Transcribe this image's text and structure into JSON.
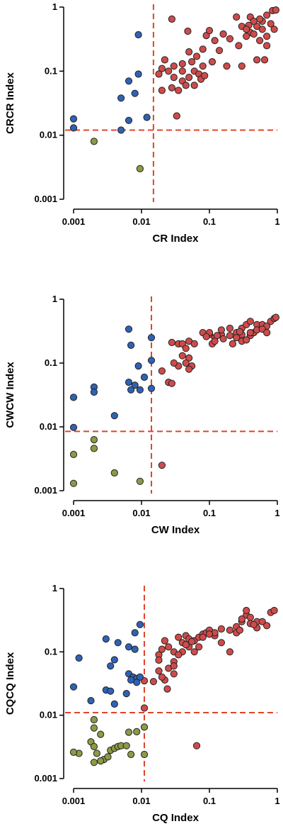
{
  "colors": {
    "red": "#cf4b4b",
    "blue": "#2f62b4",
    "olive": "#8c9a45",
    "reference_line": "#e0442a"
  },
  "chart_data": [
    {
      "type": "scatter",
      "xlabel": "CR Index",
      "ylabel": "CRCR Index",
      "xscale": "log",
      "yscale": "log",
      "xlim": [
        0.001,
        1
      ],
      "ylim": [
        0.001,
        1
      ],
      "xticks": [
        "0.001",
        "0.01",
        "0.1",
        "1"
      ],
      "yticks": [
        "0.001",
        "0.01",
        "0.1",
        "1"
      ],
      "xtick_values": [
        0.001,
        0.01,
        0.1,
        1
      ],
      "ytick_values": [
        0.001,
        0.01,
        0.1,
        1
      ],
      "grid": false,
      "reference_lines": {
        "x": 0.015,
        "y": 0.012
      },
      "series": [
        {
          "color": "#cf4b4b",
          "points": [
            [
              0.028,
              0.65
            ],
            [
              0.048,
              0.42
            ],
            [
              0.16,
              0.38
            ],
            [
              0.4,
              0.7
            ],
            [
              0.5,
              0.5
            ],
            [
              0.7,
              0.75
            ],
            [
              0.85,
              0.88
            ],
            [
              0.95,
              0.9
            ],
            [
              0.9,
              0.45
            ],
            [
              0.6,
              0.6
            ],
            [
              0.55,
              0.3
            ],
            [
              0.7,
              0.25
            ],
            [
              0.4,
              0.4
            ],
            [
              0.3,
              0.5
            ],
            [
              0.25,
              0.7
            ],
            [
              0.2,
              0.32
            ],
            [
              0.12,
              0.3
            ],
            [
              0.09,
              0.36
            ],
            [
              0.1,
              0.43
            ],
            [
              0.08,
              0.22
            ],
            [
              0.14,
              0.21
            ],
            [
              0.18,
              0.12
            ],
            [
              0.3,
              0.12
            ],
            [
              0.35,
              0.35
            ],
            [
              0.45,
              0.38
            ],
            [
              0.5,
              0.15
            ],
            [
              0.65,
              0.15
            ],
            [
              0.7,
              0.35
            ],
            [
              0.08,
              0.12
            ],
            [
              0.06,
              0.1
            ],
            [
              0.05,
              0.08
            ],
            [
              0.04,
              0.07
            ],
            [
              0.03,
              0.08
            ],
            [
              0.025,
              0.1
            ],
            [
              0.02,
              0.11
            ],
            [
              0.018,
              0.09
            ],
            [
              0.022,
              0.15
            ],
            [
              0.03,
              0.12
            ],
            [
              0.04,
              0.1
            ],
            [
              0.05,
              0.2
            ],
            [
              0.065,
              0.17
            ],
            [
              0.055,
              0.14
            ],
            [
              0.07,
              0.09
            ],
            [
              0.045,
              0.06
            ],
            [
              0.035,
              0.05
            ],
            [
              0.028,
              0.055
            ],
            [
              0.02,
              0.05
            ],
            [
              0.06,
              0.06
            ],
            [
              0.075,
              0.075
            ],
            [
              0.085,
              0.085
            ],
            [
              0.033,
              0.02
            ],
            [
              0.38,
              0.52
            ],
            [
              0.55,
              0.65
            ],
            [
              0.8,
              0.55
            ],
            [
              0.45,
              0.6
            ],
            [
              0.35,
              0.45
            ],
            [
              0.6,
              0.45
            ],
            [
              0.27,
              0.25
            ],
            [
              0.11,
              0.14
            ],
            [
              0.04,
              0.13
            ]
          ]
        },
        {
          "color": "#2f62b4",
          "points": [
            [
              0.009,
              0.37
            ],
            [
              0.009,
              0.09
            ],
            [
              0.0065,
              0.07
            ],
            [
              0.008,
              0.045
            ],
            [
              0.005,
              0.038
            ],
            [
              0.0065,
              0.017
            ],
            [
              0.012,
              0.019
            ],
            [
              0.005,
              0.012
            ],
            [
              0.001,
              0.018
            ],
            [
              0.001,
              0.013
            ]
          ]
        },
        {
          "color": "#8c9a45",
          "points": [
            [
              0.002,
              0.008
            ],
            [
              0.0095,
              0.003
            ]
          ]
        }
      ]
    },
    {
      "type": "scatter",
      "xlabel": "CW Index",
      "ylabel": "CWCW Index",
      "xscale": "log",
      "yscale": "log",
      "xlim": [
        0.001,
        1
      ],
      "ylim": [
        0.001,
        1
      ],
      "xticks": [
        "0.001",
        "0.01",
        "0.1",
        "1"
      ],
      "yticks": [
        "0.001",
        "0.01",
        "0.1",
        "1"
      ],
      "xtick_values": [
        0.001,
        0.01,
        0.1,
        1
      ],
      "ytick_values": [
        0.001,
        0.01,
        0.1,
        1
      ],
      "grid": false,
      "reference_lines": {
        "x": 0.014,
        "y": 0.0085
      },
      "series": [
        {
          "color": "#cf4b4b",
          "points": [
            [
              0.028,
              0.21
            ],
            [
              0.035,
              0.2
            ],
            [
              0.04,
              0.2
            ],
            [
              0.05,
              0.22
            ],
            [
              0.06,
              0.2
            ],
            [
              0.045,
              0.17
            ],
            [
              0.04,
              0.13
            ],
            [
              0.05,
              0.12
            ],
            [
              0.045,
              0.1
            ],
            [
              0.055,
              0.09
            ],
            [
              0.05,
              0.08
            ],
            [
              0.035,
              0.09
            ],
            [
              0.03,
              0.1
            ],
            [
              0.02,
              0.075
            ],
            [
              0.025,
              0.05
            ],
            [
              0.028,
              0.048
            ],
            [
              0.08,
              0.3
            ],
            [
              0.1,
              0.28
            ],
            [
              0.12,
              0.25
            ],
            [
              0.15,
              0.28
            ],
            [
              0.2,
              0.27
            ],
            [
              0.25,
              0.3
            ],
            [
              0.3,
              0.35
            ],
            [
              0.35,
              0.4
            ],
            [
              0.4,
              0.45
            ],
            [
              0.5,
              0.4
            ],
            [
              0.6,
              0.4
            ],
            [
              0.7,
              0.38
            ],
            [
              0.8,
              0.45
            ],
            [
              0.9,
              0.5
            ],
            [
              0.95,
              0.52
            ],
            [
              0.2,
              0.35
            ],
            [
              0.15,
              0.33
            ],
            [
              0.1,
              0.3
            ],
            [
              0.09,
              0.26
            ],
            [
              0.11,
              0.2
            ],
            [
              0.12,
              0.22
            ],
            [
              0.16,
              0.24
            ],
            [
              0.22,
              0.2
            ],
            [
              0.3,
              0.22
            ],
            [
              0.4,
              0.27
            ],
            [
              0.45,
              0.3
            ],
            [
              0.5,
              0.33
            ],
            [
              0.3,
              0.28
            ],
            [
              0.25,
              0.25
            ],
            [
              0.35,
              0.23
            ],
            [
              0.28,
              0.31
            ],
            [
              0.6,
              0.34
            ],
            [
              0.7,
              0.3
            ],
            [
              0.4,
              0.3
            ],
            [
              0.13,
              0.27
            ],
            [
              0.02,
              0.0025
            ]
          ]
        },
        {
          "color": "#2f62b4",
          "points": [
            [
              0.0065,
              0.34
            ],
            [
              0.007,
              0.19
            ],
            [
              0.014,
              0.25
            ],
            [
              0.014,
              0.11
            ],
            [
              0.009,
              0.09
            ],
            [
              0.011,
              0.06
            ],
            [
              0.0065,
              0.05
            ],
            [
              0.008,
              0.045
            ],
            [
              0.007,
              0.038
            ],
            [
              0.0095,
              0.038
            ],
            [
              0.014,
              0.04
            ],
            [
              0.002,
              0.042
            ],
            [
              0.002,
              0.035
            ],
            [
              0.004,
              0.015
            ],
            [
              0.001,
              0.029
            ],
            [
              0.001,
              0.0098
            ]
          ]
        },
        {
          "color": "#8c9a45",
          "points": [
            [
              0.002,
              0.0063
            ],
            [
              0.002,
              0.0046
            ],
            [
              0.001,
              0.0037
            ],
            [
              0.004,
              0.0019
            ],
            [
              0.001,
              0.0013
            ],
            [
              0.0095,
              0.0014
            ]
          ]
        }
      ]
    },
    {
      "type": "scatter",
      "xlabel": "CQ Index",
      "ylabel": "CQCQ Index",
      "xscale": "log",
      "yscale": "log",
      "xlim": [
        0.001,
        1
      ],
      "ylim": [
        0.001,
        1
      ],
      "xticks": [
        "0.001",
        "0.01",
        "0.1",
        "1"
      ],
      "yticks": [
        "0.001",
        "0.01",
        "0.1",
        "1"
      ],
      "xtick_values": [
        0.001,
        0.01,
        0.1,
        1
      ],
      "ytick_values": [
        0.001,
        0.01,
        0.1,
        1
      ],
      "grid": false,
      "reference_lines": {
        "x": 0.011,
        "y": 0.011
      },
      "series": [
        {
          "color": "#cf4b4b",
          "points": [
            [
              0.018,
              0.09
            ],
            [
              0.02,
              0.11
            ],
            [
              0.022,
              0.15
            ],
            [
              0.025,
              0.12
            ],
            [
              0.03,
              0.1
            ],
            [
              0.035,
              0.17
            ],
            [
              0.04,
              0.14
            ],
            [
              0.045,
              0.18
            ],
            [
              0.05,
              0.12
            ],
            [
              0.06,
              0.15
            ],
            [
              0.07,
              0.17
            ],
            [
              0.08,
              0.19
            ],
            [
              0.09,
              0.2
            ],
            [
              0.1,
              0.22
            ],
            [
              0.12,
              0.18
            ],
            [
              0.15,
              0.23
            ],
            [
              0.2,
              0.22
            ],
            [
              0.25,
              0.25
            ],
            [
              0.3,
              0.3
            ],
            [
              0.35,
              0.38
            ],
            [
              0.4,
              0.35
            ],
            [
              0.5,
              0.3
            ],
            [
              0.6,
              0.3
            ],
            [
              0.7,
              0.26
            ],
            [
              0.8,
              0.42
            ],
            [
              0.9,
              0.45
            ],
            [
              0.35,
              0.45
            ],
            [
              0.3,
              0.33
            ],
            [
              0.25,
              0.2
            ],
            [
              0.2,
              0.1
            ],
            [
              0.15,
              0.14
            ],
            [
              0.07,
              0.12
            ],
            [
              0.06,
              0.1
            ],
            [
              0.05,
              0.16
            ],
            [
              0.04,
              0.1
            ],
            [
              0.035,
              0.09
            ],
            [
              0.03,
              0.07
            ],
            [
              0.025,
              0.055
            ],
            [
              0.018,
              0.074
            ],
            [
              0.018,
              0.05
            ],
            [
              0.022,
              0.036
            ],
            [
              0.03,
              0.06
            ],
            [
              0.024,
              0.026
            ],
            [
              0.015,
              0.034
            ],
            [
              0.011,
              0.035
            ],
            [
              0.011,
              0.013
            ],
            [
              0.065,
              0.0033
            ],
            [
              0.045,
              0.13
            ],
            [
              0.055,
              0.145
            ],
            [
              0.08,
              0.17
            ],
            [
              0.12,
              0.2
            ],
            [
              0.4,
              0.28
            ],
            [
              0.5,
              0.24
            ],
            [
              0.45,
              0.27
            ],
            [
              0.28,
              0.22
            ],
            [
              0.02,
              0.04
            ],
            [
              0.03,
              0.045
            ],
            [
              0.1,
              0.19
            ]
          ]
        },
        {
          "color": "#2f62b4",
          "points": [
            [
              0.0095,
              0.27
            ],
            [
              0.008,
              0.2
            ],
            [
              0.003,
              0.16
            ],
            [
              0.0045,
              0.14
            ],
            [
              0.0065,
              0.12
            ],
            [
              0.008,
              0.11
            ],
            [
              0.0012,
              0.08
            ],
            [
              0.004,
              0.075
            ],
            [
              0.0035,
              0.06
            ],
            [
              0.0065,
              0.045
            ],
            [
              0.0075,
              0.04
            ],
            [
              0.0085,
              0.038
            ],
            [
              0.0095,
              0.04
            ],
            [
              0.0085,
              0.033
            ],
            [
              0.007,
              0.036
            ],
            [
              0.006,
              0.022
            ],
            [
              0.003,
              0.025
            ],
            [
              0.0035,
              0.024
            ],
            [
              0.0018,
              0.017
            ],
            [
              0.004,
              0.015
            ],
            [
              0.001,
              0.028
            ]
          ]
        },
        {
          "color": "#8c9a45",
          "points": [
            [
              0.002,
              0.0085
            ],
            [
              0.002,
              0.0063
            ],
            [
              0.0025,
              0.005
            ],
            [
              0.0018,
              0.0038
            ],
            [
              0.002,
              0.0032
            ],
            [
              0.0022,
              0.0025
            ],
            [
              0.0028,
              0.002
            ],
            [
              0.0025,
              0.0019
            ],
            [
              0.002,
              0.0018
            ],
            [
              0.0012,
              0.0025
            ],
            [
              0.001,
              0.0026
            ],
            [
              0.0035,
              0.0028
            ],
            [
              0.004,
              0.003
            ],
            [
              0.0045,
              0.0032
            ],
            [
              0.005,
              0.0033
            ],
            [
              0.006,
              0.0033
            ],
            [
              0.0065,
              0.0054
            ],
            [
              0.0085,
              0.0055
            ],
            [
              0.011,
              0.0065
            ],
            [
              0.007,
              0.0024
            ],
            [
              0.011,
              0.0024
            ],
            [
              0.0032,
              0.0022
            ]
          ]
        }
      ]
    }
  ]
}
